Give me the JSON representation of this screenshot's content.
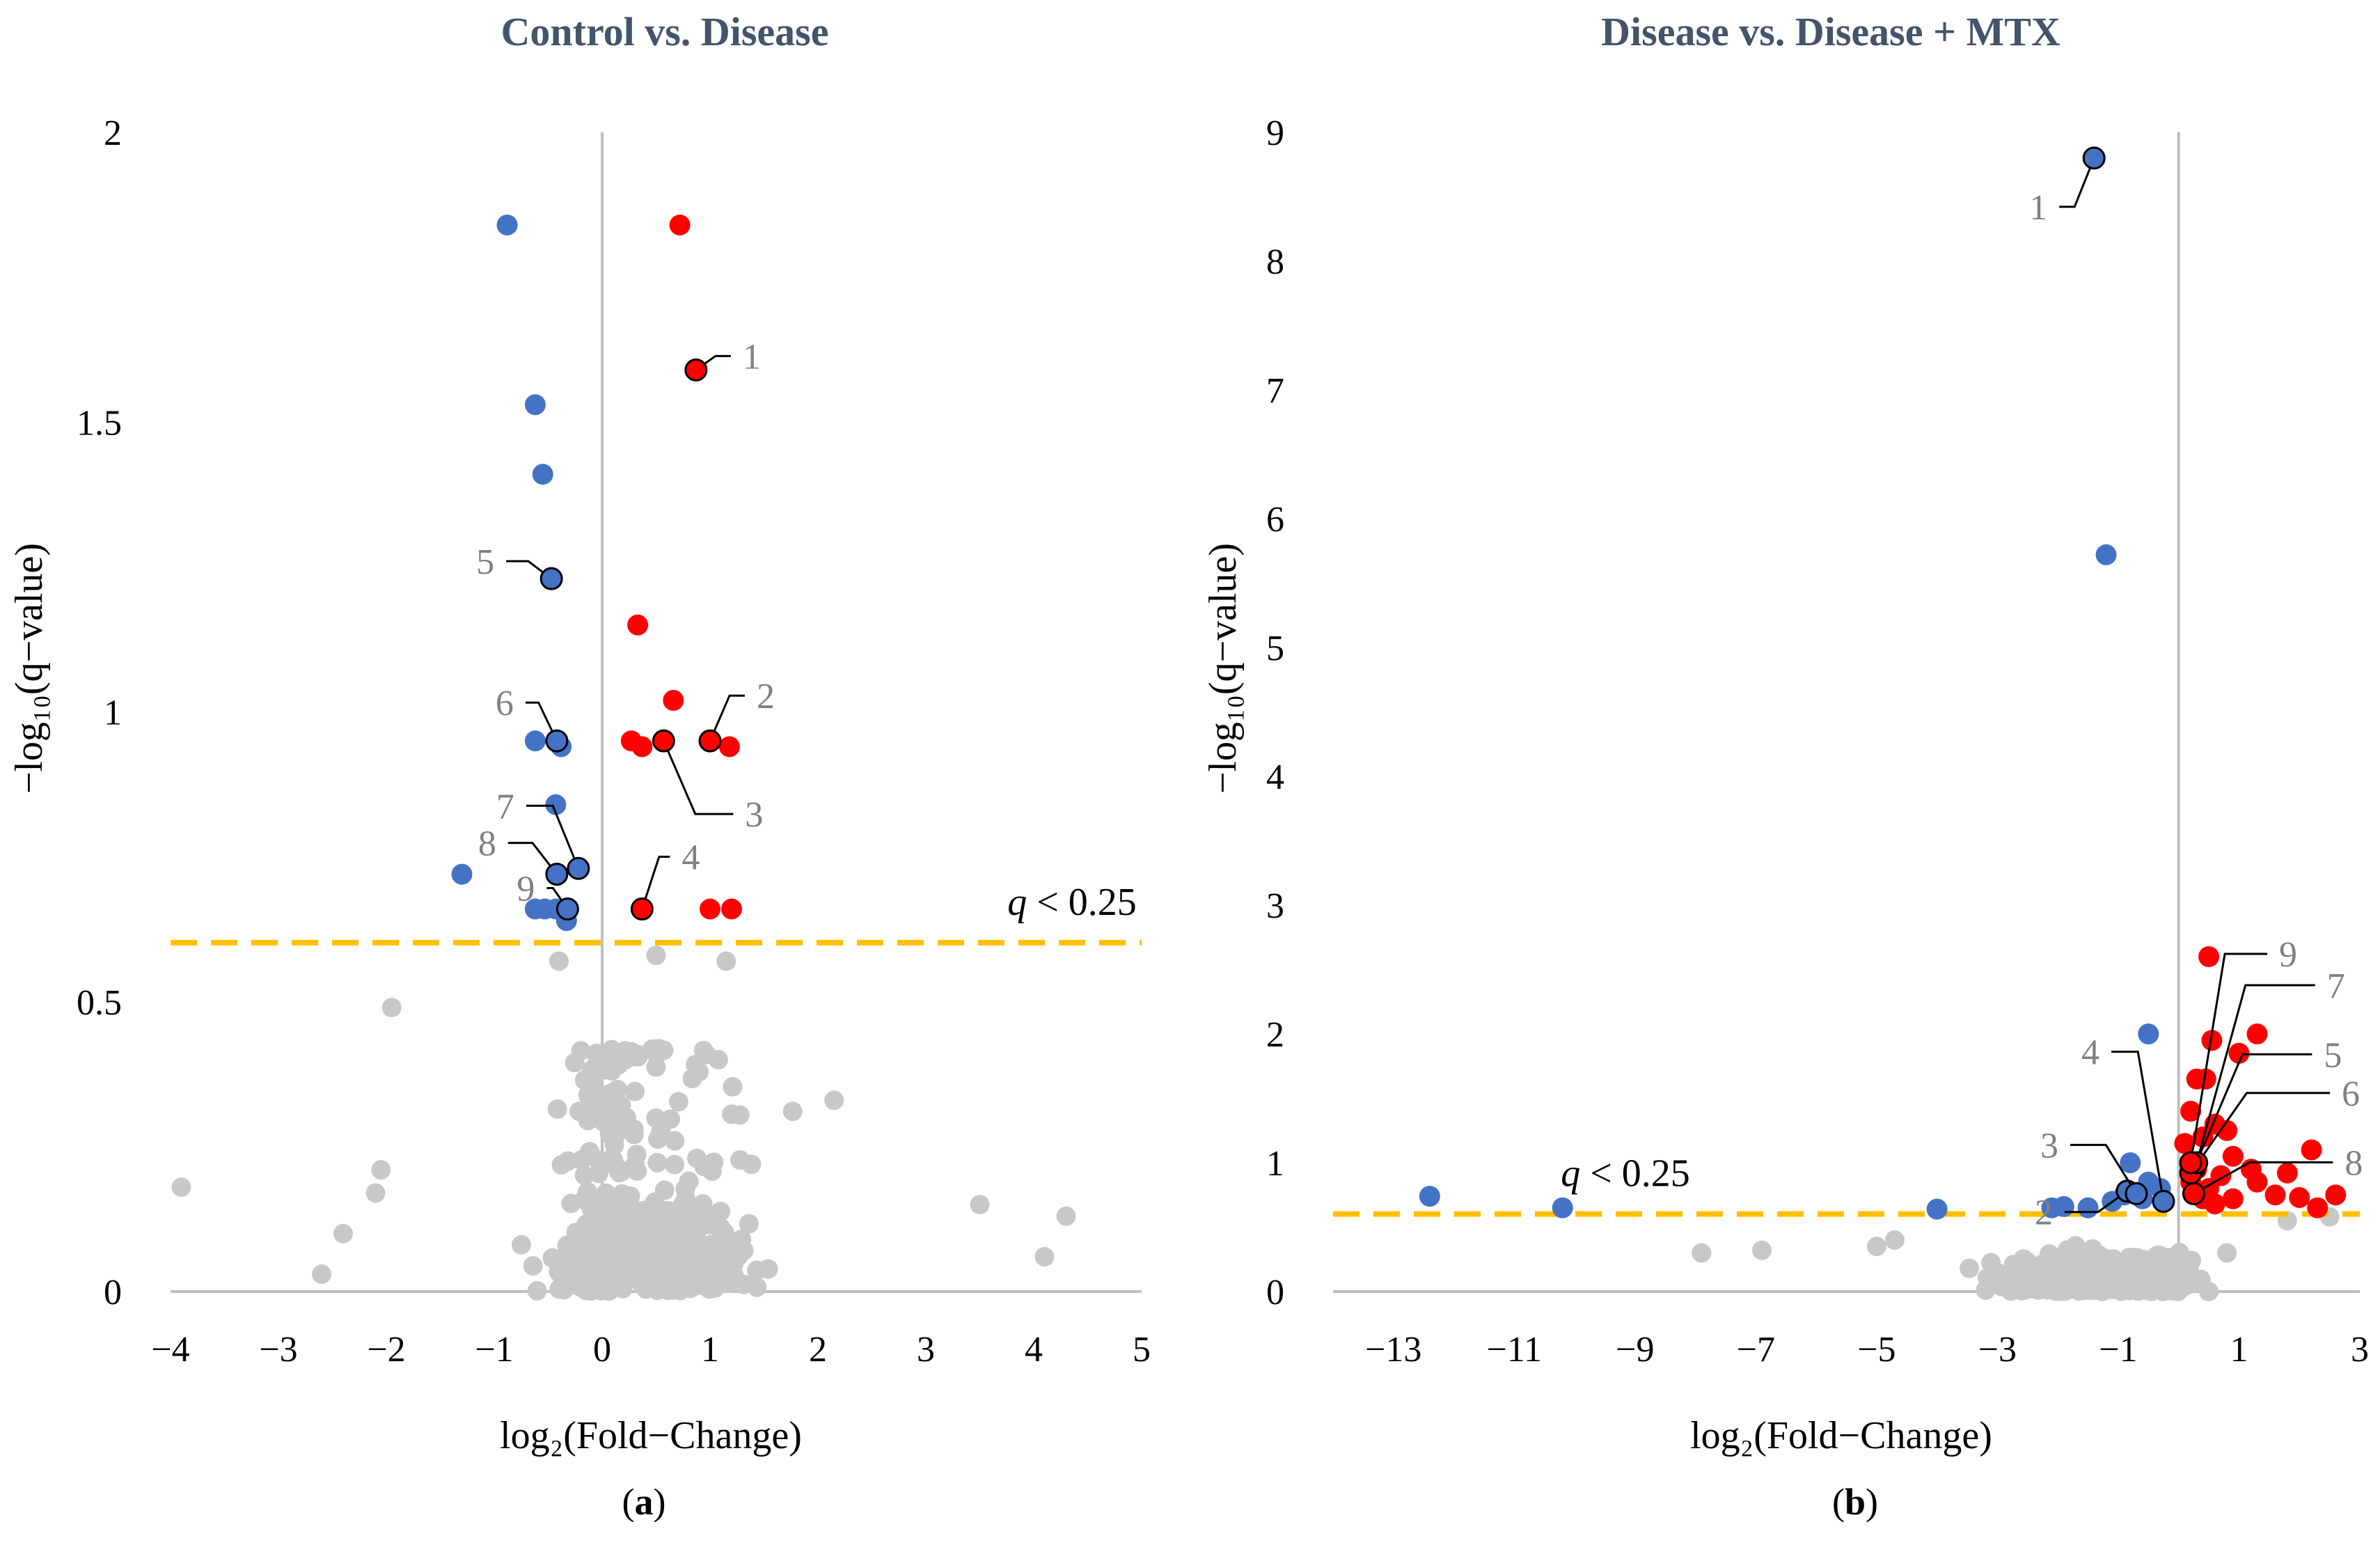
{
  "colors": {
    "up": "#ff0000",
    "down": "#4472c4",
    "ns": "#c8c8c8",
    "threshold": "#ffc000",
    "axis": "#bfbfbf",
    "title": "#44546a",
    "label_gray": "#808080"
  },
  "chart_data": [
    {
      "type": "scatter",
      "title": "Control vs. Disease",
      "xlabel": "log₂(Fold−Change)",
      "ylabel": "−log₁₀(q−value)",
      "panel_label": "(a)",
      "panel_letter": "a",
      "xlim": [
        -4,
        5
      ],
      "ylim": [
        0,
        2
      ],
      "xticks": [
        -4,
        -3,
        -2,
        -1,
        0,
        1,
        2,
        3,
        4,
        5
      ],
      "yticks": [
        0,
        0.5,
        1,
        1.5,
        2
      ],
      "threshold": {
        "y": 0.602,
        "label_q": "q",
        "label_rest": " < 0.25"
      },
      "up": [
        [
          0.72,
          1.84
        ],
        [
          0.33,
          1.15
        ],
        [
          0.66,
          1.02
        ],
        [
          0.27,
          0.95
        ],
        [
          0.37,
          0.94
        ],
        [
          1.18,
          0.94
        ],
        [
          1.0,
          0.66
        ],
        [
          1.2,
          0.66
        ]
      ],
      "down": [
        [
          -0.88,
          1.84
        ],
        [
          -0.62,
          1.53
        ],
        [
          -0.55,
          1.41
        ],
        [
          -0.62,
          0.95
        ],
        [
          -0.38,
          0.94
        ],
        [
          -0.43,
          0.84
        ],
        [
          -1.3,
          0.72
        ],
        [
          -0.62,
          0.66
        ],
        [
          -0.53,
          0.66
        ],
        [
          -0.43,
          0.66
        ],
        [
          -0.33,
          0.64
        ]
      ],
      "labeled": [
        {
          "id": "1",
          "x": 0.87,
          "y": 1.59,
          "color": "up"
        },
        {
          "id": "2",
          "x": 1.0,
          "y": 0.95,
          "color": "up"
        },
        {
          "id": "3",
          "x": 0.57,
          "y": 0.95,
          "color": "up"
        },
        {
          "id": "4",
          "x": 0.37,
          "y": 0.66,
          "color": "up"
        },
        {
          "id": "5",
          "x": -0.47,
          "y": 1.23,
          "color": "down"
        },
        {
          "id": "6",
          "x": -0.42,
          "y": 0.95,
          "color": "down"
        },
        {
          "id": "7",
          "x": -0.22,
          "y": 0.73,
          "color": "down"
        },
        {
          "id": "8",
          "x": -0.42,
          "y": 0.72,
          "color": "down"
        },
        {
          "id": "9",
          "x": -0.32,
          "y": 0.66,
          "color": "down"
        }
      ]
    },
    {
      "type": "scatter",
      "title": "Disease vs. Disease + MTX",
      "xlabel": "log₂(Fold−Change)",
      "ylabel": "−log₁₀(q−value)",
      "panel_label": "(b)",
      "panel_letter": "b",
      "xlim": [
        -14,
        3
      ],
      "ylim": [
        0,
        9
      ],
      "xticks": [
        -13,
        -11,
        -9,
        -7,
        -5,
        -3,
        -1,
        1,
        3
      ],
      "yticks": [
        0,
        1,
        2,
        3,
        4,
        5,
        6,
        7,
        8,
        9
      ],
      "threshold": {
        "y": 0.602,
        "label_q": "q",
        "label_rest": " < 0.25"
      },
      "up": [
        [
          0.5,
          2.6
        ],
        [
          0.55,
          1.95
        ],
        [
          1.3,
          2.0
        ],
        [
          1.0,
          1.85
        ],
        [
          0.3,
          1.65
        ],
        [
          0.45,
          1.65
        ],
        [
          0.2,
          1.4
        ],
        [
          0.6,
          1.3
        ],
        [
          0.8,
          1.25
        ],
        [
          0.4,
          1.2
        ],
        [
          0.1,
          1.15
        ],
        [
          0.9,
          1.05
        ],
        [
          0.3,
          0.95
        ],
        [
          0.7,
          0.9
        ],
        [
          1.2,
          0.95
        ],
        [
          0.2,
          0.85
        ],
        [
          0.5,
          0.8
        ],
        [
          1.3,
          0.85
        ],
        [
          2.2,
          1.1
        ],
        [
          1.8,
          0.92
        ],
        [
          0.4,
          0.72
        ],
        [
          0.9,
          0.72
        ],
        [
          2.6,
          0.75
        ],
        [
          2.0,
          0.73
        ],
        [
          2.3,
          0.65
        ],
        [
          1.6,
          0.75
        ],
        [
          0.6,
          0.68
        ]
      ],
      "down": [
        [
          -1.2,
          5.72
        ],
        [
          -0.5,
          2.0
        ],
        [
          -12.4,
          0.74
        ],
        [
          -10.2,
          0.65
        ],
        [
          -4.0,
          0.64
        ],
        [
          -2.1,
          0.65
        ],
        [
          -1.9,
          0.66
        ],
        [
          -1.5,
          0.65
        ],
        [
          -0.8,
          1.0
        ],
        [
          -0.5,
          0.85
        ],
        [
          -0.3,
          0.8
        ],
        [
          -0.9,
          0.75
        ],
        [
          -0.6,
          0.72
        ],
        [
          -1.1,
          0.7
        ]
      ],
      "labeled": [
        {
          "id": "1",
          "x": -1.4,
          "y": 8.8,
          "color": "down"
        },
        {
          "id": "2",
          "x": -0.85,
          "y": 0.78,
          "color": "down"
        },
        {
          "id": "3",
          "x": -0.7,
          "y": 0.76,
          "color": "down"
        },
        {
          "id": "4",
          "x": -0.25,
          "y": 0.7,
          "color": "down"
        },
        {
          "id": "5",
          "x": 0.25,
          "y": 0.95,
          "color": "up"
        },
        {
          "id": "6",
          "x": 0.2,
          "y": 0.92,
          "color": "up"
        },
        {
          "id": "7",
          "x": 0.3,
          "y": 1.0,
          "color": "up"
        },
        {
          "id": "8",
          "x": 0.25,
          "y": 0.76,
          "color": "up"
        },
        {
          "id": "9",
          "x": 0.2,
          "y": 1.0,
          "color": "up"
        }
      ]
    }
  ]
}
